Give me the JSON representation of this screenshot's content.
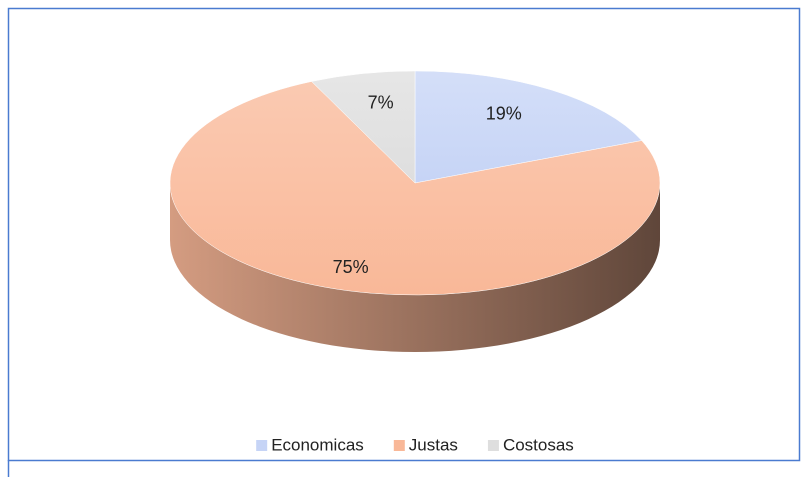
{
  "chart_data": {
    "type": "pie3d",
    "categories": [
      "Economicas",
      "Justas",
      "Costosas"
    ],
    "values": [
      19,
      75,
      7
    ],
    "value_labels": [
      "19%",
      "75%",
      "7%"
    ],
    "colors": [
      "#c6d4f6",
      "#f9b898",
      "#dedede"
    ],
    "legend": "bottom"
  }
}
